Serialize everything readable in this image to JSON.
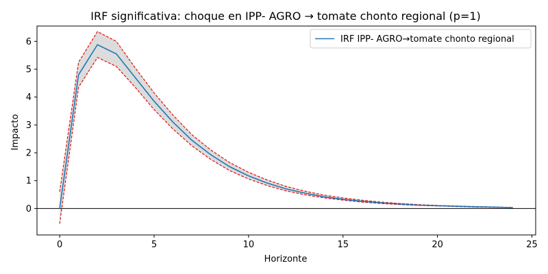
{
  "chart_data": {
    "type": "line",
    "title": "IRF significativa: choque en IPP- AGRO → tomate chonto regional (p=1)",
    "xlabel": "Horizonte",
    "ylabel": "Impacto",
    "xlim": [
      -1.2,
      25.2
    ],
    "ylim": [
      -0.95,
      6.55
    ],
    "xticks": [
      0,
      5,
      10,
      15,
      20,
      25
    ],
    "yticks": [
      0,
      1,
      2,
      3,
      4,
      5,
      6
    ],
    "grid": false,
    "legend_position": "top-right",
    "zero_line": true,
    "x": [
      0,
      1,
      2,
      3,
      4,
      5,
      6,
      7,
      8,
      9,
      10,
      11,
      12,
      13,
      14,
      15,
      16,
      17,
      18,
      19,
      20,
      21,
      22,
      23,
      24
    ],
    "series": [
      {
        "name": "IRF IPP- AGRO→tomate chonto regional",
        "color": "#1f77b4",
        "values": [
          0.0,
          4.8,
          5.88,
          5.55,
          4.7,
          3.85,
          3.1,
          2.45,
          1.93,
          1.5,
          1.17,
          0.91,
          0.7,
          0.55,
          0.42,
          0.33,
          0.26,
          0.2,
          0.16,
          0.12,
          0.1,
          0.08,
          0.06,
          0.05,
          0.03
        ]
      }
    ],
    "band": {
      "color_fill": "#dcdcdc",
      "color_line": "#e01010",
      "upper": [
        0.6,
        5.25,
        6.35,
        6.0,
        5.05,
        4.15,
        3.35,
        2.65,
        2.1,
        1.65,
        1.3,
        1.02,
        0.79,
        0.62,
        0.48,
        0.38,
        0.3,
        0.23,
        0.18,
        0.14,
        0.11,
        0.09,
        0.07,
        0.05,
        0.04
      ],
      "lower": [
        -0.55,
        4.35,
        5.42,
        5.1,
        4.35,
        3.55,
        2.85,
        2.25,
        1.76,
        1.36,
        1.06,
        0.82,
        0.63,
        0.49,
        0.38,
        0.3,
        0.23,
        0.18,
        0.14,
        0.11,
        0.09,
        0.07,
        0.05,
        0.04,
        0.03
      ]
    }
  }
}
